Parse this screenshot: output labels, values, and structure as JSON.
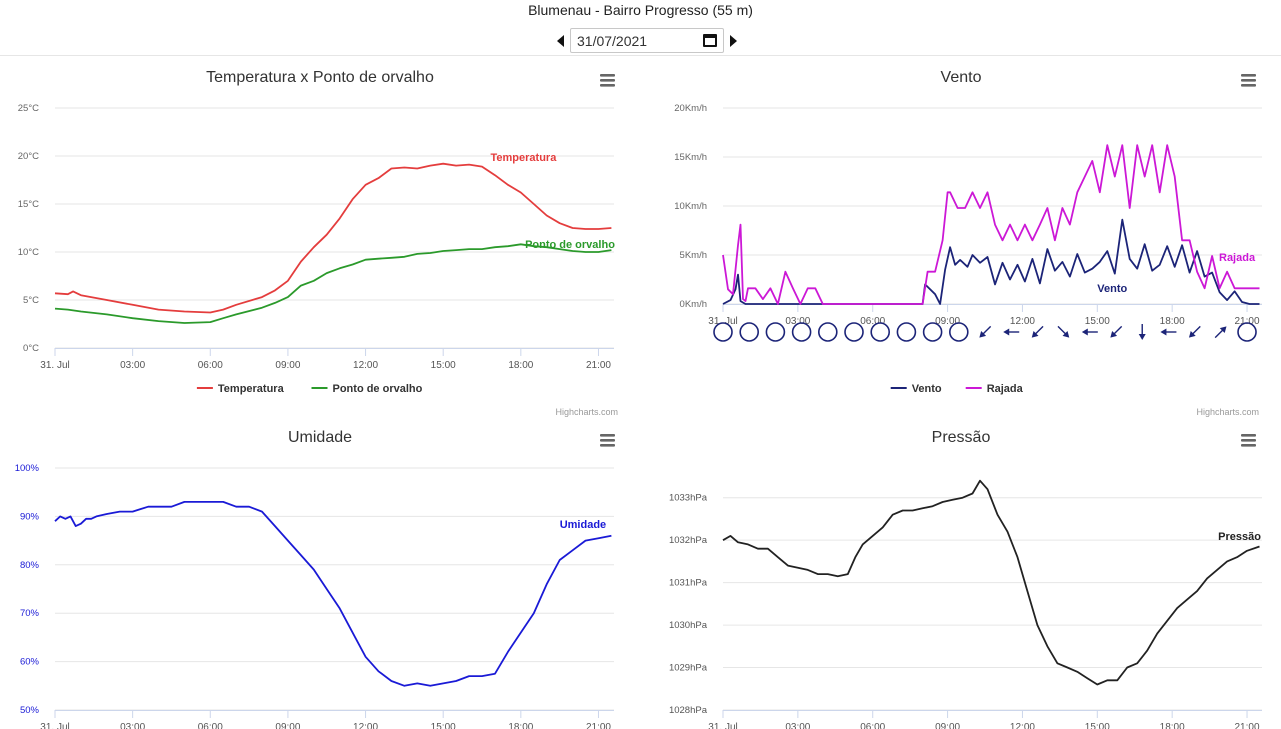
{
  "header": {
    "title": "Blumenau - Bairro Progresso (55 m)",
    "date": "31/07/2021"
  },
  "credits": "Highcharts.com",
  "chart_data": [
    {
      "id": "temp",
      "type": "line",
      "title": "Temperatura x Ponto de orvalho",
      "xlabels": [
        "31. Jul",
        "03:00",
        "06:00",
        "09:00",
        "12:00",
        "15:00",
        "18:00",
        "21:00"
      ],
      "xrange": [
        0,
        21.6
      ],
      "ylim": [
        0,
        25
      ],
      "yticks": [
        0,
        5,
        10,
        15,
        20,
        25
      ],
      "yunit": "°C",
      "legend": "bottom-center",
      "series": [
        {
          "name": "Temperatura",
          "color": "#e43d3d",
          "x": [
            0,
            0.5,
            0.7,
            1,
            2,
            3,
            4,
            5,
            6,
            6.5,
            7,
            8,
            8.5,
            9,
            9.5,
            10,
            10.5,
            11,
            11.5,
            12,
            12.5,
            13,
            13.5,
            14,
            14.5,
            15,
            15.5,
            16,
            16.5,
            17,
            17.5,
            18,
            18.5,
            19,
            19.5,
            20,
            20.5,
            21,
            21.5
          ],
          "y": [
            5.7,
            5.6,
            5.9,
            5.5,
            5.0,
            4.5,
            4.0,
            3.8,
            3.7,
            4.0,
            4.5,
            5.3,
            6.0,
            7.0,
            9.0,
            10.5,
            11.8,
            13.5,
            15.5,
            17.0,
            17.7,
            18.7,
            18.8,
            18.7,
            19.0,
            19.2,
            19.0,
            19.1,
            18.9,
            18.0,
            17.0,
            16.2,
            15.0,
            13.8,
            13.0,
            12.5,
            12.4,
            12.4,
            12.5
          ]
        },
        {
          "name": "Ponto de orvalho",
          "color": "#2b9a2b",
          "x": [
            0,
            0.5,
            1,
            2,
            3,
            4,
            5,
            6,
            6.5,
            7,
            8,
            8.5,
            9,
            9.5,
            10,
            10.5,
            11,
            11.5,
            12,
            12.5,
            13,
            13.5,
            14,
            14.5,
            15,
            15.5,
            16,
            16.5,
            17,
            17.5,
            18,
            18.5,
            19,
            19.5,
            20,
            20.5,
            21,
            21.5
          ],
          "y": [
            4.1,
            4.0,
            3.8,
            3.5,
            3.1,
            2.8,
            2.6,
            2.7,
            3.1,
            3.5,
            4.2,
            4.7,
            5.3,
            6.5,
            7.0,
            7.8,
            8.3,
            8.7,
            9.2,
            9.3,
            9.4,
            9.5,
            9.8,
            9.9,
            10.1,
            10.2,
            10.3,
            10.3,
            10.5,
            10.6,
            10.8,
            10.6,
            10.5,
            10.3,
            10.1,
            10.0,
            10.0,
            10.2
          ]
        }
      ]
    },
    {
      "id": "vento",
      "type": "line",
      "title": "Vento",
      "xlabels": [
        "31. Jul",
        "03:00",
        "06:00",
        "09:00",
        "12:00",
        "15:00",
        "18:00",
        "21:00"
      ],
      "xrange": [
        0,
        21.6
      ],
      "ylim": [
        0,
        20
      ],
      "yticks": [
        0,
        5,
        10,
        15,
        20
      ],
      "yunit": "Km/h",
      "legend": "bottom-center",
      "series": [
        {
          "name": "Vento",
          "color": "#1c2478",
          "x": [
            0,
            0.3,
            0.5,
            0.6,
            0.7,
            0.9,
            1.2,
            1.5,
            2,
            3,
            4,
            5,
            6,
            7,
            8,
            8.1,
            8.5,
            8.7,
            8.9,
            9.1,
            9.3,
            9.5,
            9.8,
            10,
            10.3,
            10.6,
            10.9,
            11.2,
            11.5,
            11.8,
            12.1,
            12.4,
            12.7,
            13.0,
            13.3,
            13.6,
            13.9,
            14.2,
            14.5,
            14.8,
            15.1,
            15.4,
            15.7,
            16,
            16.3,
            16.6,
            16.9,
            17.2,
            17.5,
            17.8,
            18.1,
            18.4,
            18.7,
            19,
            19.3,
            19.6,
            19.9,
            20.2,
            20.5,
            20.8,
            21.1,
            21.5
          ],
          "y": [
            0,
            0.4,
            1.5,
            3.0,
            0.3,
            0,
            0,
            0,
            0,
            0,
            0,
            0,
            0,
            0,
            0,
            2.0,
            1.0,
            0,
            3.5,
            5.8,
            4.0,
            4.5,
            3.8,
            5.0,
            4.2,
            4.8,
            2.0,
            4.2,
            2.5,
            4.0,
            2.3,
            4.6,
            2.1,
            5.6,
            3.4,
            4.3,
            2.8,
            5.1,
            3.2,
            3.6,
            4.3,
            5.4,
            3.1,
            8.6,
            4.6,
            3.6,
            6.1,
            3.4,
            4.0,
            5.9,
            3.8,
            6.0,
            3.2,
            5.4,
            2.8,
            3.2,
            1.2,
            0.4,
            1.3,
            0.2,
            0,
            0
          ]
        },
        {
          "name": "Rajada",
          "color": "#cc18d6",
          "x": [
            0,
            0.2,
            0.4,
            0.6,
            0.7,
            0.8,
            0.9,
            1.0,
            1.3,
            1.6,
            1.9,
            2.2,
            2.5,
            2.8,
            3.1,
            3.4,
            3.7,
            4,
            5,
            6,
            7,
            7.5,
            8,
            8.2,
            8.5,
            8.8,
            9.0,
            9.1,
            9.4,
            9.7,
            10.0,
            10.3,
            10.6,
            10.9,
            11.2,
            11.5,
            11.8,
            12.1,
            12.4,
            12.7,
            13.0,
            13.3,
            13.6,
            13.9,
            14.2,
            14.5,
            14.8,
            15.1,
            15.4,
            15.7,
            16.0,
            16.3,
            16.6,
            16.9,
            17.2,
            17.5,
            17.8,
            18.1,
            18.4,
            18.7,
            19.0,
            19.3,
            19.6,
            19.9,
            20.2,
            20.5,
            20.8,
            21.1,
            21.5
          ],
          "y": [
            5.0,
            1.5,
            1.0,
            6.0,
            8.1,
            0.5,
            0.3,
            1.6,
            1.6,
            0.5,
            1.6,
            0,
            3.3,
            1.6,
            0,
            1.6,
            1.6,
            0,
            0,
            0,
            0,
            0,
            0,
            3.3,
            3.3,
            6.5,
            11.4,
            11.4,
            9.8,
            9.8,
            11.4,
            9.8,
            11.4,
            8.1,
            6.5,
            8.1,
            6.5,
            8.1,
            6.5,
            8.1,
            9.8,
            6.5,
            9.8,
            8.1,
            11.4,
            13.0,
            14.6,
            11.4,
            16.2,
            13.0,
            16.2,
            9.8,
            16.2,
            13.0,
            16.2,
            11.4,
            16.2,
            13.0,
            6.5,
            6.5,
            3.3,
            1.6,
            4.9,
            1.6,
            3.3,
            1.6,
            1.6,
            1.6,
            1.6
          ]
        }
      ],
      "direction_row": [
        "calm",
        "calm",
        "calm",
        "calm",
        "calm",
        "calm",
        "calm",
        "calm",
        "calm",
        "calm",
        "arrow-sw",
        "arrow-w",
        "arrow-sw",
        "arrow-se",
        "arrow-w",
        "arrow-sw",
        "arrow-s",
        "arrow-w",
        "arrow-sw",
        "arrow-ne",
        "calm"
      ]
    },
    {
      "id": "umidade",
      "type": "line",
      "title": "Umidade",
      "xlabels": [
        "31. Jul",
        "03:00",
        "06:00",
        "09:00",
        "12:00",
        "15:00",
        "18:00",
        "21:00"
      ],
      "xrange": [
        0,
        21.6
      ],
      "ylim": [
        50,
        100
      ],
      "yticks": [
        50,
        60,
        70,
        80,
        90,
        100
      ],
      "yunit": "%",
      "legend": "none",
      "series": [
        {
          "name": "Umidade",
          "color": "#1a1ad6",
          "x": [
            0,
            0.2,
            0.4,
            0.6,
            0.8,
            1.0,
            1.2,
            1.4,
            1.6,
            2.0,
            2.5,
            3.0,
            3.3,
            3.6,
            4.0,
            4.5,
            5.0,
            5.5,
            6.0,
            6.5,
            7.0,
            7.5,
            8.0,
            8.5,
            9.0,
            9.5,
            10.0,
            10.5,
            11.0,
            11.5,
            12.0,
            12.5,
            13.0,
            13.5,
            14.0,
            14.5,
            15.0,
            15.5,
            16.0,
            16.5,
            17.0,
            17.5,
            18.0,
            18.5,
            19.0,
            19.5,
            20.0,
            20.5,
            21.0,
            21.5
          ],
          "y": [
            89,
            90,
            89.5,
            90,
            88,
            88.5,
            89.5,
            89.5,
            90,
            90.5,
            91,
            91,
            91.5,
            92,
            92,
            92,
            93,
            93,
            93,
            93,
            92,
            92,
            91,
            88,
            85,
            82,
            79,
            75,
            71,
            66,
            61,
            58,
            56,
            55,
            55.5,
            55,
            55.5,
            56,
            57,
            57,
            57.5,
            62,
            66,
            70,
            76,
            81,
            83,
            85,
            85.5,
            86
          ]
        }
      ]
    },
    {
      "id": "pressao",
      "type": "line",
      "title": "Pressão",
      "xlabels": [
        "31. Jul",
        "03:00",
        "06:00",
        "09:00",
        "12:00",
        "15:00",
        "18:00",
        "21:00"
      ],
      "xrange": [
        0,
        21.6
      ],
      "ylim": [
        1028,
        1033.7
      ],
      "yticks": [
        1028,
        1029,
        1030,
        1031,
        1032,
        1033
      ],
      "yunit": "hPa",
      "legend": "none",
      "series": [
        {
          "name": "Pressão",
          "color": "#222222",
          "x": [
            0,
            0.3,
            0.6,
            1.0,
            1.4,
            1.8,
            2.2,
            2.6,
            3.0,
            3.4,
            3.8,
            4.2,
            4.6,
            5.0,
            5.3,
            5.6,
            6.0,
            6.4,
            6.8,
            7.2,
            7.6,
            8.0,
            8.4,
            8.8,
            9.2,
            9.6,
            10.0,
            10.3,
            10.6,
            11.0,
            11.4,
            11.8,
            12.2,
            12.6,
            13.0,
            13.4,
            13.8,
            14.2,
            14.6,
            15.0,
            15.4,
            15.8,
            16.2,
            16.6,
            17.0,
            17.4,
            17.8,
            18.2,
            18.6,
            19.0,
            19.4,
            19.8,
            20.2,
            20.6,
            21.0,
            21.5
          ],
          "y": [
            1032.0,
            1032.1,
            1031.95,
            1031.9,
            1031.8,
            1031.8,
            1031.6,
            1031.4,
            1031.35,
            1031.3,
            1031.2,
            1031.2,
            1031.15,
            1031.2,
            1031.6,
            1031.9,
            1032.1,
            1032.3,
            1032.6,
            1032.7,
            1032.7,
            1032.75,
            1032.8,
            1032.9,
            1032.95,
            1033.0,
            1033.1,
            1033.4,
            1033.2,
            1032.6,
            1032.2,
            1031.6,
            1030.8,
            1030.0,
            1029.5,
            1029.1,
            1029.0,
            1028.9,
            1028.75,
            1028.6,
            1028.7,
            1028.7,
            1029.0,
            1029.1,
            1029.4,
            1029.8,
            1030.1,
            1030.4,
            1030.6,
            1030.8,
            1031.1,
            1031.3,
            1031.5,
            1031.6,
            1031.75,
            1031.85
          ]
        }
      ]
    }
  ]
}
